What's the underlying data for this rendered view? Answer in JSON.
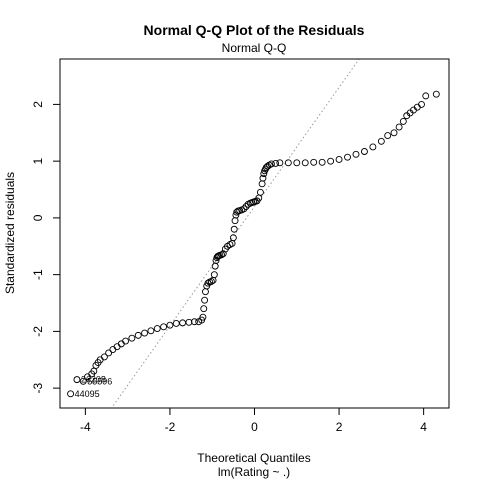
{
  "chart_data": {
    "type": "scatter",
    "title": "Normal Q-Q Plot of the Residuals",
    "subtitle": "Normal Q-Q",
    "xlabel": "Theoretical Quantiles",
    "xlabel_sub": "lm(Rating ~ .)",
    "ylabel": "Standardized residuals",
    "xlim": [
      -4.6,
      4.6
    ],
    "ylim": [
      -3.35,
      2.8
    ],
    "xticks": [
      -4,
      -2,
      0,
      2,
      4
    ],
    "xtick_labels": [
      "-4",
      "-2",
      "0",
      "2",
      "4"
    ],
    "yticks": [
      -3,
      -2,
      -1,
      0,
      1,
      2
    ],
    "ytick_labels": [
      "-3",
      "-2",
      "-1",
      "0",
      "1",
      "2"
    ],
    "reference_line": {
      "intercept": 0.2,
      "slope": 1.05
    },
    "grid": false,
    "labeled_points": [
      {
        "id": "26208",
        "x": -4.2,
        "y": -2.85
      },
      {
        "id": "55596",
        "x": -4.05,
        "y": -2.88
      },
      {
        "id": "44095",
        "x": -4.35,
        "y": -3.1
      }
    ],
    "series": [
      {
        "x": [
          -4.35,
          -4.2,
          -4.05,
          -3.95,
          -3.85,
          -3.8,
          -3.75,
          -3.7,
          -3.65,
          -3.55,
          -3.45,
          -3.35,
          -3.25,
          -3.15,
          -3.05,
          -2.9,
          -2.75,
          -2.6,
          -2.45,
          -2.3,
          -2.15,
          -2.0,
          -1.85,
          -1.7,
          -1.55,
          -1.42,
          -1.32,
          -1.25,
          -1.22,
          -1.2,
          -1.18,
          -1.16,
          -1.13,
          -1.1,
          -1.06,
          -1.02,
          -0.98,
          -0.95,
          -0.93,
          -0.91,
          -0.89,
          -0.87,
          -0.85,
          -0.82,
          -0.78,
          -0.74,
          -0.69,
          -0.64,
          -0.58,
          -0.53,
          -0.5,
          -0.48,
          -0.46,
          -0.44,
          -0.42,
          -0.39,
          -0.35,
          -0.3,
          -0.25,
          -0.2,
          -0.15,
          -0.1,
          -0.06,
          -0.02,
          0.02,
          0.06,
          0.1,
          0.14,
          0.18,
          0.2,
          0.22,
          0.24,
          0.26,
          0.28,
          0.31,
          0.35,
          0.4,
          0.5,
          0.6,
          0.8,
          1.0,
          1.2,
          1.4,
          1.6,
          1.8,
          2.0,
          2.2,
          2.4,
          2.6,
          2.8,
          3.0,
          3.15,
          3.3,
          3.42,
          3.52,
          3.6,
          3.68,
          3.76,
          3.85,
          3.95,
          4.05,
          4.3
        ],
        "values": [
          -3.1,
          -2.85,
          -2.88,
          -2.8,
          -2.75,
          -2.7,
          -2.6,
          -2.55,
          -2.5,
          -2.45,
          -2.38,
          -2.32,
          -2.27,
          -2.22,
          -2.17,
          -2.12,
          -2.07,
          -2.03,
          -1.99,
          -1.95,
          -1.92,
          -1.89,
          -1.86,
          -1.85,
          -1.84,
          -1.83,
          -1.83,
          -1.8,
          -1.75,
          -1.6,
          -1.45,
          -1.3,
          -1.2,
          -1.15,
          -1.13,
          -1.12,
          -1.1,
          -1.0,
          -0.85,
          -0.75,
          -0.7,
          -0.68,
          -0.67,
          -0.66,
          -0.65,
          -0.63,
          -0.55,
          -0.5,
          -0.47,
          -0.45,
          -0.35,
          -0.2,
          -0.05,
          0.05,
          0.1,
          0.12,
          0.13,
          0.14,
          0.16,
          0.2,
          0.24,
          0.26,
          0.27,
          0.28,
          0.29,
          0.3,
          0.35,
          0.45,
          0.6,
          0.7,
          0.78,
          0.83,
          0.86,
          0.89,
          0.91,
          0.93,
          0.95,
          0.96,
          0.97,
          0.97,
          0.97,
          0.97,
          0.98,
          0.98,
          1.0,
          1.03,
          1.07,
          1.12,
          1.17,
          1.25,
          1.35,
          1.45,
          1.5,
          1.6,
          1.7,
          1.8,
          1.85,
          1.9,
          1.95,
          2.0,
          2.15,
          2.18
        ]
      }
    ]
  }
}
